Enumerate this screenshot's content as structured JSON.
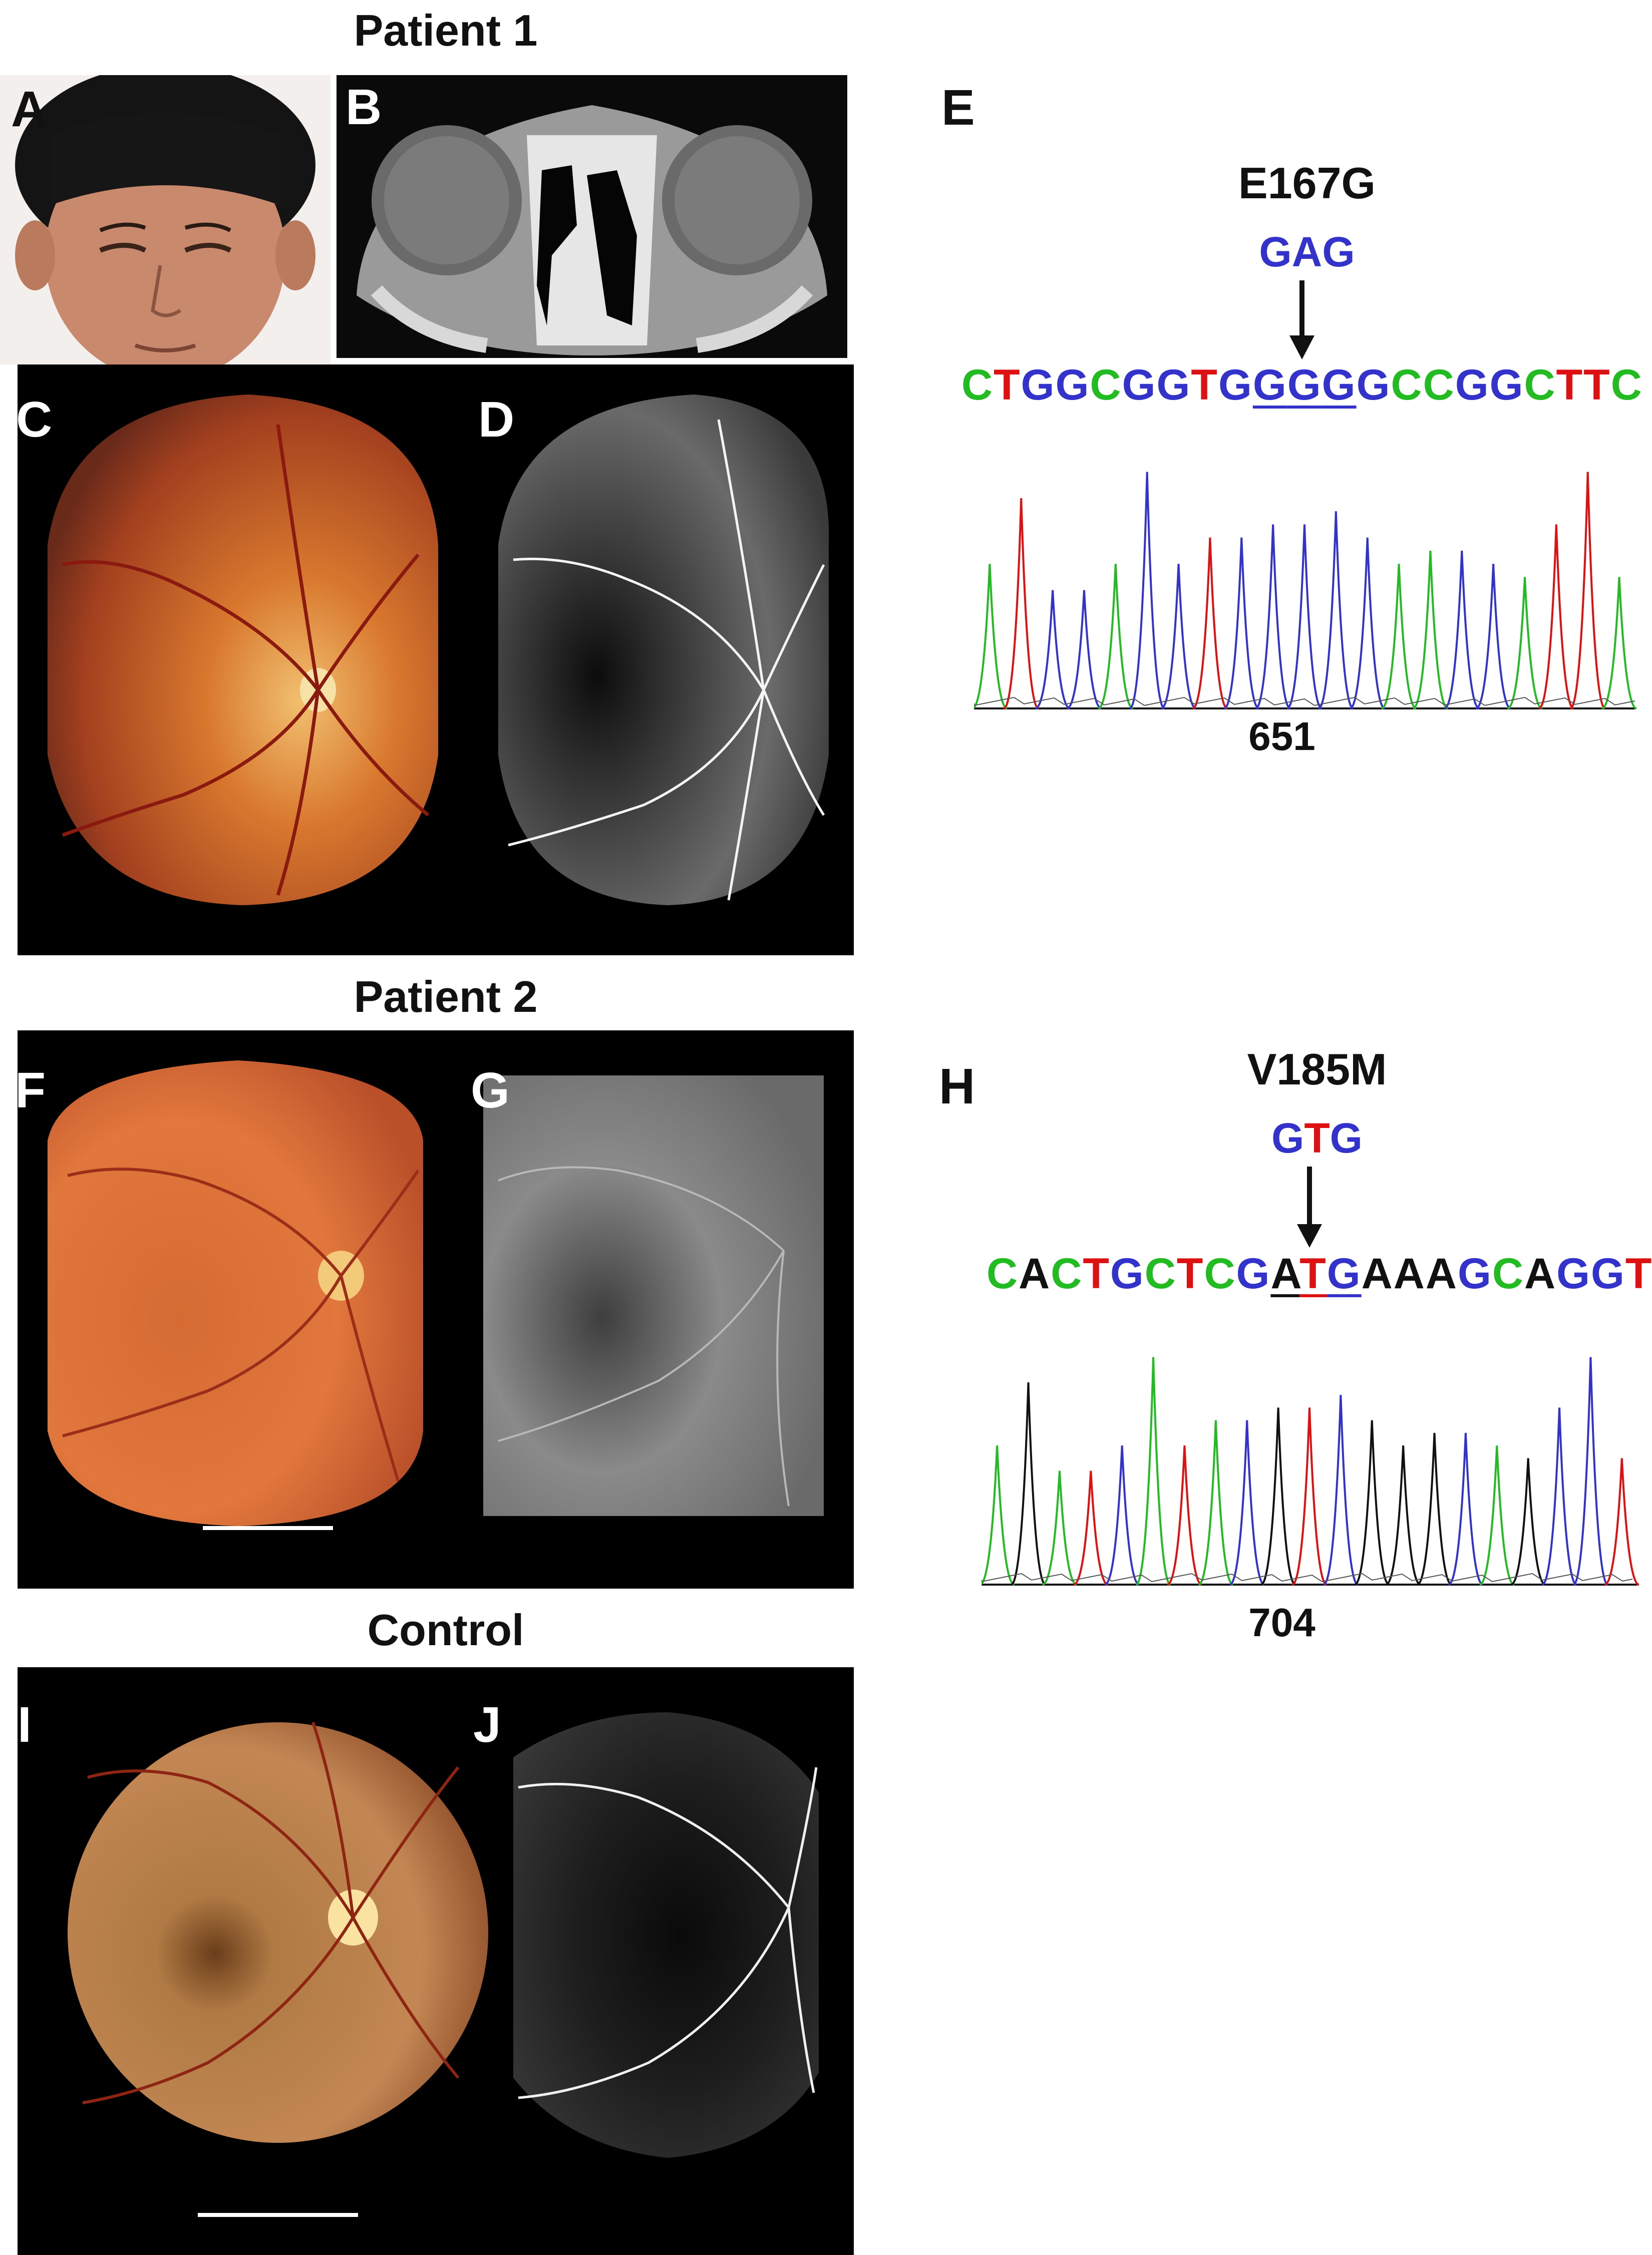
{
  "sections": {
    "patient1": "Patient 1",
    "patient2": "Patient 2",
    "control": "Control"
  },
  "panel_labels": {
    "A": "A",
    "B": "B",
    "C": "C",
    "D": "D",
    "E": "E",
    "F": "F",
    "G": "G",
    "H": "H",
    "I": "I",
    "J": "J"
  },
  "mutation_E": {
    "name": "E167G",
    "codon": [
      {
        "b": "G",
        "c": "#3333cc"
      },
      {
        "b": "A",
        "c": "#3333cc"
      },
      {
        "b": "G",
        "c": "#3333cc"
      }
    ],
    "sequence": [
      {
        "b": "C",
        "c": "#22bb22"
      },
      {
        "b": "T",
        "c": "#dd1111"
      },
      {
        "b": "G",
        "c": "#3333cc"
      },
      {
        "b": "G",
        "c": "#3333cc"
      },
      {
        "b": "C",
        "c": "#22bb22"
      },
      {
        "b": "G",
        "c": "#3333cc"
      },
      {
        "b": "G",
        "c": "#3333cc"
      },
      {
        "b": "T",
        "c": "#dd1111"
      },
      {
        "b": "G",
        "c": "#3333cc"
      },
      {
        "b": "G",
        "c": "#3333cc",
        "u": true
      },
      {
        "b": "G",
        "c": "#3333cc",
        "u": true
      },
      {
        "b": "G",
        "c": "#3333cc",
        "u": true
      },
      {
        "b": "G",
        "c": "#3333cc"
      },
      {
        "b": "C",
        "c": "#22bb22"
      },
      {
        "b": "C",
        "c": "#22bb22"
      },
      {
        "b": "G",
        "c": "#3333cc"
      },
      {
        "b": "G",
        "c": "#3333cc"
      },
      {
        "b": "C",
        "c": "#22bb22"
      },
      {
        "b": "T",
        "c": "#dd1111"
      },
      {
        "b": "T",
        "c": "#dd1111"
      },
      {
        "b": "C",
        "c": "#22bb22"
      }
    ],
    "position": "651"
  },
  "mutation_H": {
    "name": "V185M",
    "codon": [
      {
        "b": "G",
        "c": "#3333cc"
      },
      {
        "b": "T",
        "c": "#dd1111"
      },
      {
        "b": "G",
        "c": "#3333cc"
      }
    ],
    "sequence": [
      {
        "b": "C",
        "c": "#22bb22"
      },
      {
        "b": "A",
        "c": "#111111"
      },
      {
        "b": "C",
        "c": "#22bb22"
      },
      {
        "b": "T",
        "c": "#dd1111"
      },
      {
        "b": "G",
        "c": "#3333cc"
      },
      {
        "b": "C",
        "c": "#22bb22"
      },
      {
        "b": "T",
        "c": "#dd1111"
      },
      {
        "b": "C",
        "c": "#22bb22"
      },
      {
        "b": "G",
        "c": "#3333cc"
      },
      {
        "b": "A",
        "c": "#111111",
        "u": true
      },
      {
        "b": "T",
        "c": "#dd1111",
        "u": true
      },
      {
        "b": "G",
        "c": "#3333cc",
        "u": true
      },
      {
        "b": "A",
        "c": "#111111"
      },
      {
        "b": "A",
        "c": "#111111"
      },
      {
        "b": "A",
        "c": "#111111"
      },
      {
        "b": "G",
        "c": "#3333cc"
      },
      {
        "b": "C",
        "c": "#22bb22"
      },
      {
        "b": "A",
        "c": "#111111"
      },
      {
        "b": "G",
        "c": "#3333cc"
      },
      {
        "b": "G",
        "c": "#3333cc"
      },
      {
        "b": "T",
        "c": "#dd1111"
      }
    ],
    "position": "704"
  },
  "colors": {
    "A": "#111111",
    "C": "#22bb22",
    "G": "#3333cc",
    "T": "#dd1111"
  }
}
